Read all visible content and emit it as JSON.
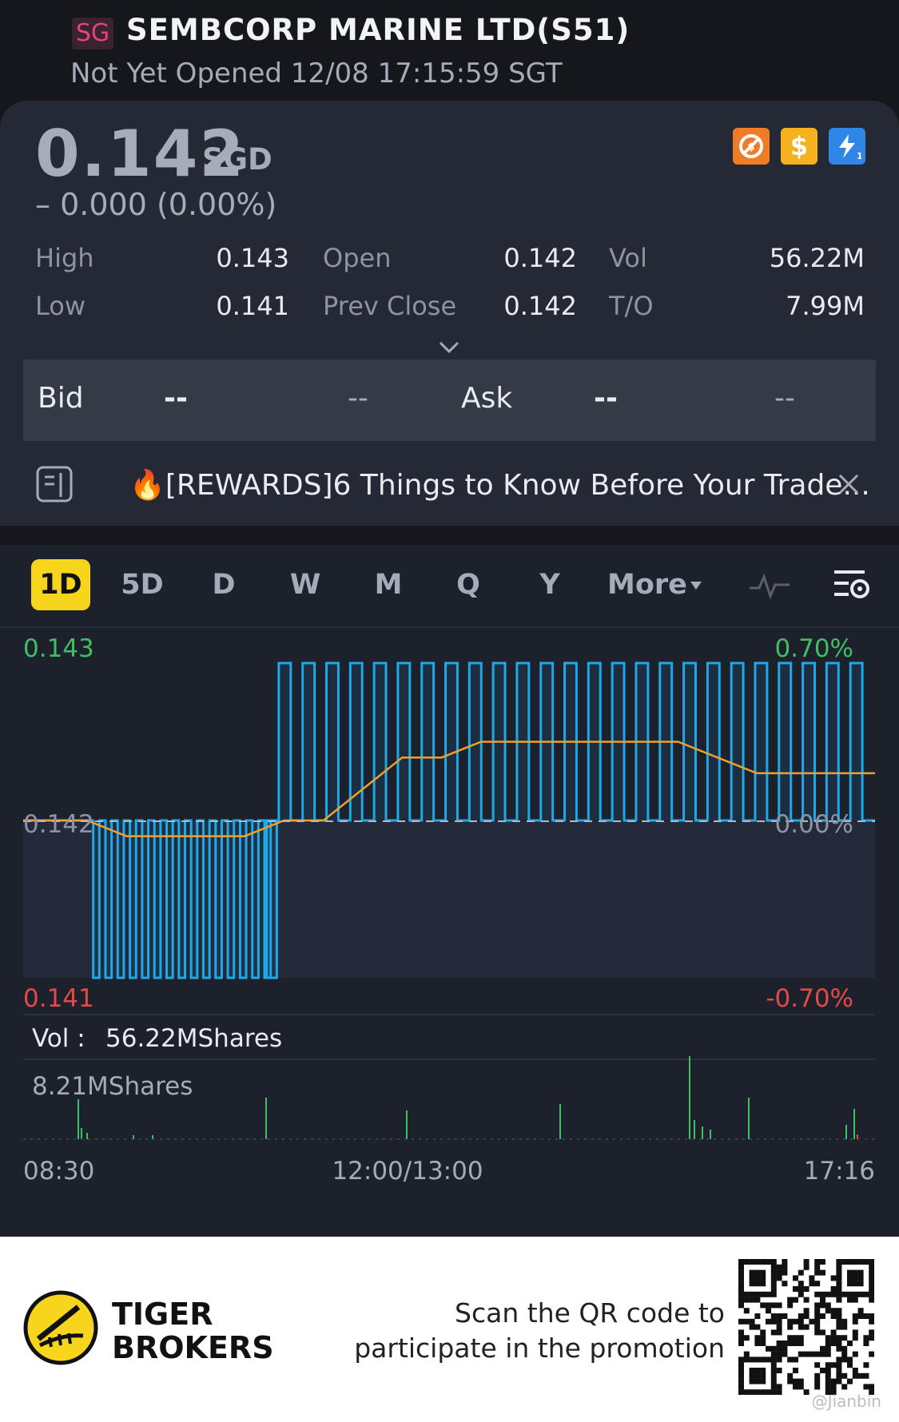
{
  "header": {
    "market_badge": "SG",
    "title": "SEMBCORP MARINE LTD(S51)",
    "status": "Not Yet Opened 12/08 17:15:59 SGT"
  },
  "quote": {
    "price": "0.142",
    "currency": "SGD",
    "change": "– 0.000 (0.00%)",
    "icons": [
      "no-short-icon",
      "dollar-icon",
      "flash-icon"
    ]
  },
  "stats": {
    "high_label": "High",
    "high": "0.143",
    "low_label": "Low",
    "low": "0.141",
    "open_label": "Open",
    "open": "0.142",
    "prev_close_label": "Prev Close",
    "prev_close": "0.142",
    "vol_label": "Vol",
    "vol": "56.22M",
    "to_label": "T/O",
    "to": "7.99M"
  },
  "bidask": {
    "bid_label": "Bid",
    "bid_price": "--",
    "bid_size": "--",
    "ask_label": "Ask",
    "ask_price": "--",
    "ask_size": "--"
  },
  "news": {
    "text": "🔥[REWARDS]6 Things to Know Before Your Trade..."
  },
  "tabs": [
    "1D",
    "5D",
    "D",
    "W",
    "M",
    "Q",
    "Y",
    "More"
  ],
  "active_tab": "1D",
  "chart_data": {
    "type": "line",
    "y_top_label": "0.143",
    "y_mid_label": "0.142",
    "y_bottom_label": "0.141",
    "pct_top_label": "0.70%",
    "pct_mid_label": "0.00%",
    "pct_bottom_label": "-0.70%",
    "ylim": [
      0.141,
      0.143
    ],
    "prev_close": 0.142,
    "x_labels": [
      "08:30",
      "12:00/13:00",
      "17:16"
    ],
    "vol_label": "Vol :",
    "vol_value": "56.22MShares",
    "vol_scale_label": "8.21MShares",
    "price_toggles": [
      [
        0.142,
        0.141,
        0.142,
        0.141,
        0.142,
        0.141,
        0.142,
        0.141,
        0.142,
        0.141,
        0.142,
        0.141,
        0.142,
        0.141,
        0.142,
        0.141,
        0.142,
        0.141,
        0.142,
        0.141,
        0.142,
        0.141,
        0.142,
        0.141,
        0.142,
        0.141,
        0.142,
        0.141,
        0.142,
        0.141,
        0.142,
        0.141,
        0.142,
        0.143,
        0.142,
        0.143,
        0.142,
        0.143,
        0.142,
        0.143,
        0.142,
        0.143,
        0.142,
        0.143,
        0.142,
        0.143,
        0.142,
        0.143,
        0.142,
        0.143,
        0.142,
        0.143,
        0.142,
        0.143,
        0.142,
        0.143,
        0.142,
        0.143,
        0.142,
        0.143,
        0.142,
        0.143,
        0.142,
        0.143,
        0.142,
        0.143,
        0.142,
        0.143,
        0.142,
        0.143,
        0.142,
        0.143,
        0.142,
        0.143,
        0.142,
        0.143,
        0.142,
        0.143,
        0.142,
        0.143,
        0.142,
        0.143,
        0.142
      ]
    ],
    "avg_line": [
      0.142,
      0.1419,
      0.1419,
      0.1419,
      0.1419,
      0.142,
      0.142,
      0.1422,
      0.1424,
      0.1424,
      0.1425,
      0.1425,
      0.1425,
      0.1425,
      0.1425,
      0.1425,
      0.1424,
      0.1423,
      0.1423,
      0.1423,
      0.1423
    ]
  },
  "footer": {
    "brand_line1": "TIGER",
    "brand_line2": "BROKERS",
    "promo_line1": "Scan the QR code to",
    "promo_line2": "participate in the promotion",
    "watermark": "@Jianbin"
  }
}
